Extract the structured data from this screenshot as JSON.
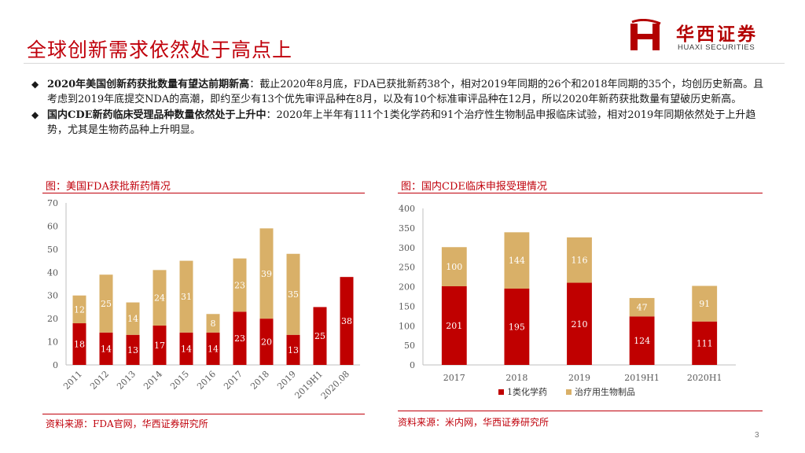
{
  "slide": {
    "title": "全球创新需求依然处于高点上",
    "page_number": "3"
  },
  "logo": {
    "name_cn": "华西证券",
    "name_en": "HUAXI SECURITIES"
  },
  "bullets": [
    {
      "lead": "2020年美国创新药获批数量有望达前期新高",
      "text": "：截止2020年8月底，FDA已获批新药38个，相对2019年同期的26个和2018年同期的35个，均创历史新高。且考虑到2019年底提交NDA的高潮，即约至少有13个优先审评品种在8月，以及有10个标准审评品种在12月，所以2020年新药获批数量有望破历史新高。"
    },
    {
      "lead": "国内CDE新药临床受理品种数量依然处于上升中",
      "text": "：2020年上半年有111个1类化学药和91个治疗性生物制品申报临床试验，相对2019年同期依然处于上升趋势，尤其是生物药品种上升明显。"
    }
  ],
  "left_chart": {
    "title": "图：美国FDA获批新药情况",
    "source": "资料来源：FDA官网，华西证券研究所"
  },
  "right_chart": {
    "title": "图：国内CDE临床申报受理情况",
    "source": "资料来源：米内网，华西证券研究所"
  },
  "colors": {
    "accent": "#c0000b",
    "bar_red": "#c00000",
    "bar_tan": "#d9b068",
    "axis": "#bfbfbf",
    "tick_text": "#595959"
  },
  "chart_data": [
    {
      "type": "bar",
      "stacked": true,
      "title": "图：美国FDA获批新药情况",
      "categories": [
        "2011",
        "2012",
        "2013",
        "2014",
        "2015",
        "2016",
        "2017",
        "2018",
        "2019",
        "2019H1",
        "2020.08"
      ],
      "series": [
        {
          "values": [
            18,
            14,
            13,
            17,
            14,
            14,
            23,
            20,
            13,
            25,
            38
          ]
        },
        {
          "values": [
            12,
            25,
            14,
            24,
            31,
            8,
            23,
            39,
            35,
            null,
            null
          ]
        }
      ],
      "ylim": [
        0,
        70
      ],
      "yticks": [
        0,
        10,
        20,
        30,
        40,
        50,
        60,
        70
      ],
      "legend": "none",
      "grid": false
    },
    {
      "type": "bar",
      "stacked": true,
      "title": "图：国内CDE临床申报受理情况",
      "categories": [
        "2017",
        "2018",
        "2019",
        "2019H1",
        "2020H1"
      ],
      "series": [
        {
          "name": "1类化学药",
          "values": [
            201,
            195,
            210,
            124,
            111
          ]
        },
        {
          "name": "治疗用生物制品",
          "values": [
            100,
            144,
            116,
            47,
            91
          ]
        }
      ],
      "ylim": [
        0,
        400
      ],
      "yticks": [
        0,
        50,
        100,
        150,
        200,
        250,
        300,
        350,
        400
      ],
      "legend": "bottom",
      "grid": false
    }
  ]
}
